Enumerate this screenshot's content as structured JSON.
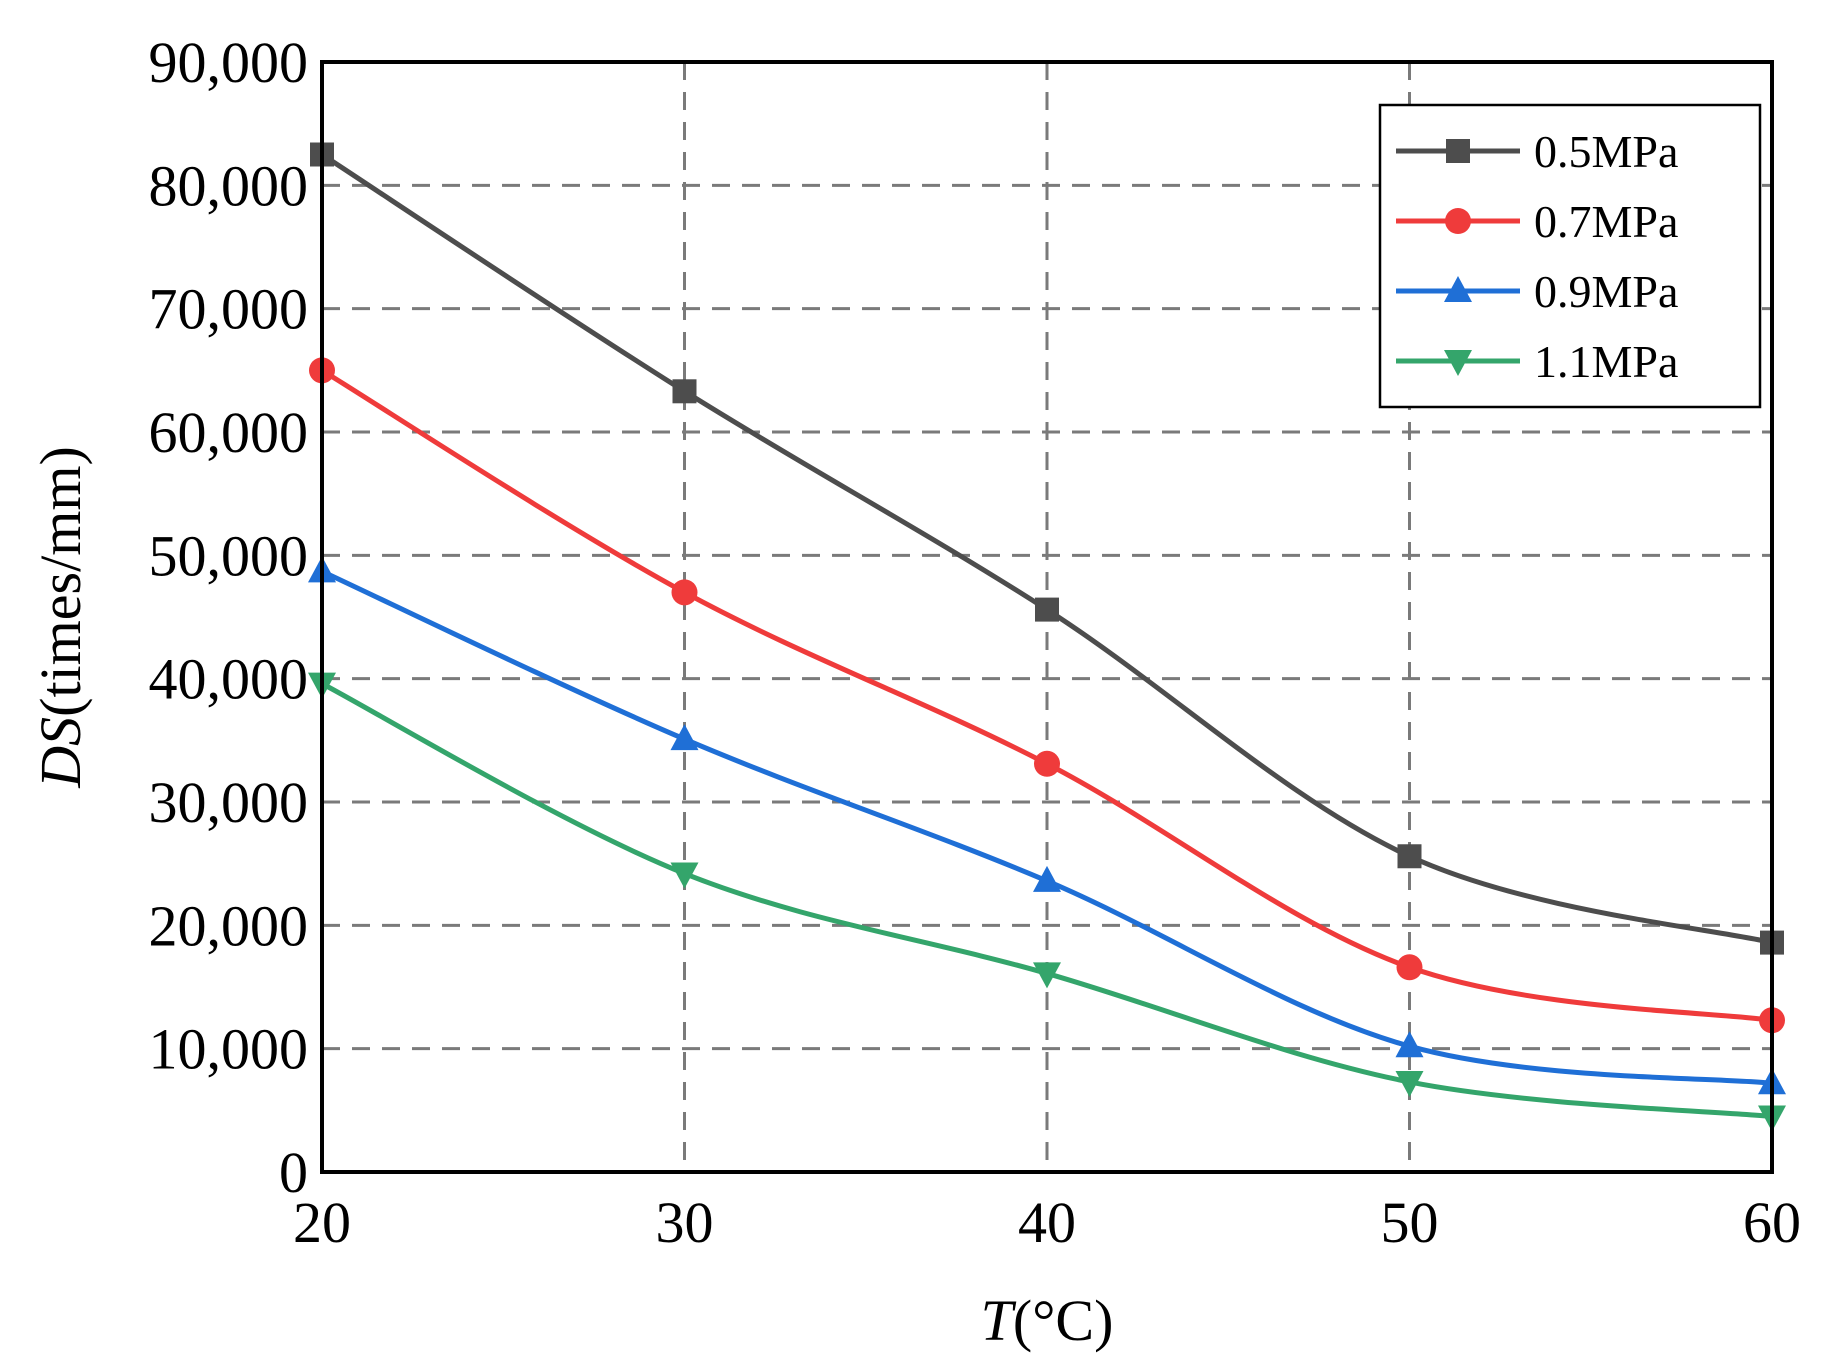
{
  "chart_data": {
    "type": "line",
    "x": [
      20,
      30,
      40,
      50,
      60
    ],
    "xlim": [
      20,
      60
    ],
    "ylim": [
      0,
      90000
    ],
    "x_ticks": [
      "20",
      "30",
      "40",
      "50",
      "60"
    ],
    "y_ticks": [
      "0",
      "10,000",
      "20,000",
      "30,000",
      "40,000",
      "50,000",
      "60,000",
      "70,000",
      "80,000",
      "90,000"
    ],
    "xlabel": {
      "italic": "T",
      "rest": "(°C)"
    },
    "ylabel": {
      "italic": "DS",
      "rest": "(times/mm)"
    },
    "grid": "dashed",
    "legend_position": "top-right",
    "series": [
      {
        "name": "0.5MPa",
        "color": "#4d4d4d",
        "marker": "square",
        "values": [
          82500,
          63300,
          45600,
          25600,
          18600
        ]
      },
      {
        "name": "0.7MPa",
        "color": "#ef3b3b",
        "marker": "circle",
        "values": [
          65000,
          47000,
          33100,
          16600,
          12300
        ]
      },
      {
        "name": "0.9MPa",
        "color": "#1f6fd6",
        "marker": "triangle-up",
        "values": [
          48700,
          35100,
          23600,
          10200,
          7200
        ]
      },
      {
        "name": "1.1MPa",
        "color": "#34a56b",
        "marker": "triangle-down",
        "values": [
          39600,
          24200,
          16100,
          7300,
          4500
        ]
      }
    ]
  }
}
